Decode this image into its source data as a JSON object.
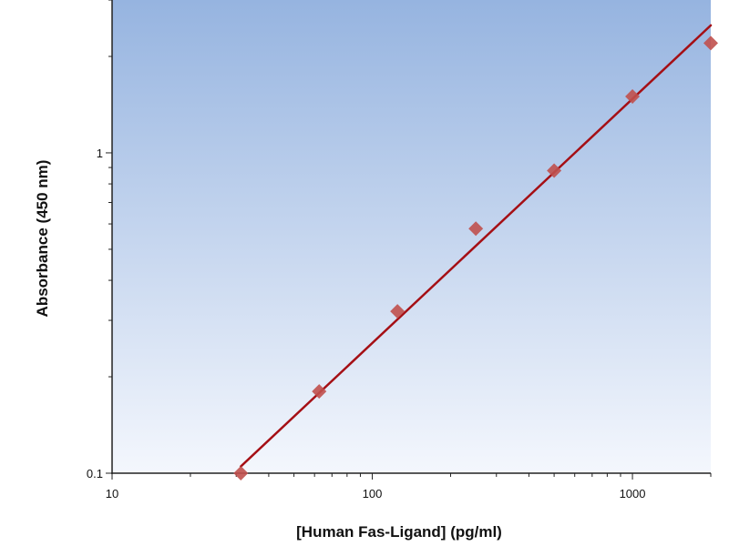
{
  "chart_data": {
    "type": "scatter",
    "title": "",
    "xlabel": "[Human Fas-Ligand] (pg/ml)",
    "ylabel": "Absorbance (450 nm)",
    "x_scale": "log",
    "y_scale": "log",
    "xlim": [
      10,
      2000
    ],
    "ylim": [
      0.1,
      3
    ],
    "x_ticks": [
      {
        "value": 10,
        "label": "10"
      },
      {
        "value": 100,
        "label": "100"
      },
      {
        "value": 1000,
        "label": "1000"
      }
    ],
    "y_ticks": [
      {
        "value": 0.1,
        "label": "0.1"
      },
      {
        "value": 1,
        "label": "1"
      }
    ],
    "grid": false,
    "legend": "none",
    "series": [
      {
        "marker": "diamond",
        "color": "#c0504d",
        "points": [
          {
            "x": 31.25,
            "y": 0.1
          },
          {
            "x": 62.5,
            "y": 0.18
          },
          {
            "x": 125,
            "y": 0.32
          },
          {
            "x": 250,
            "y": 0.58
          },
          {
            "x": 500,
            "y": 0.88
          },
          {
            "x": 1000,
            "y": 1.5
          },
          {
            "x": 2000,
            "y": 2.2
          }
        ]
      }
    ],
    "fit_line": {
      "color": "#a50f15",
      "x_start": 31.25,
      "y_start": 0.105,
      "x_end": 2000,
      "y_end": 2.5
    },
    "colors": {
      "plot_bg_top": "#96b4e0",
      "plot_bg_bottom": "#f4f7fd"
    }
  }
}
